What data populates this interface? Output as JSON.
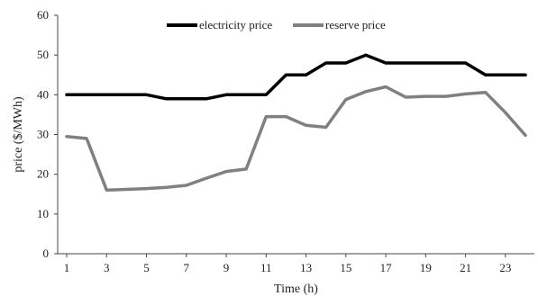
{
  "chart_data": {
    "type": "line",
    "xlabel": "Time (h)",
    "ylabel": "price ($/MWh)",
    "xlim": [
      1,
      24
    ],
    "ylim": [
      0,
      60
    ],
    "yticks": [
      0,
      10,
      20,
      30,
      40,
      50,
      60
    ],
    "xticks": [
      1,
      3,
      5,
      7,
      9,
      11,
      13,
      15,
      17,
      19,
      21,
      23
    ],
    "grid": false,
    "legend_position": "top",
    "x": [
      1,
      2,
      3,
      4,
      5,
      6,
      7,
      8,
      9,
      10,
      11,
      12,
      13,
      14,
      15,
      16,
      17,
      18,
      19,
      20,
      21,
      22,
      23,
      24
    ],
    "series": [
      {
        "name": "electricity price",
        "color": "#000000",
        "values": [
          40,
          40,
          40,
          40,
          40,
          39,
          39,
          39,
          40,
          40,
          40,
          45,
          45,
          48,
          48,
          50,
          48,
          48,
          48,
          48,
          48,
          45,
          45,
          45
        ]
      },
      {
        "name": "reserve price",
        "color": "#808080",
        "values": [
          29.5,
          29,
          16,
          16.2,
          16.4,
          16.7,
          17.2,
          19,
          20.7,
          21.3,
          34.5,
          34.5,
          32.3,
          31.8,
          38.8,
          40.8,
          42,
          39.4,
          39.6,
          39.6,
          40.2,
          40.6,
          35.5,
          29.8
        ]
      }
    ]
  }
}
